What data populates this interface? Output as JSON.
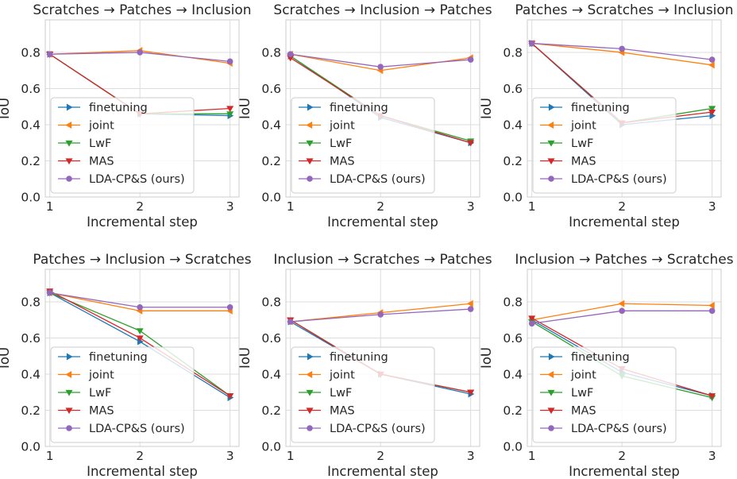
{
  "chart_data": [
    {
      "type": "line",
      "title": "Scratches → Patches → Inclusion",
      "xlabel": "Incremental step",
      "ylabel": "IoU",
      "x": [
        1,
        2,
        3
      ],
      "ylim": [
        0,
        0.98
      ],
      "yticks": [
        0.0,
        0.2,
        0.4,
        0.6,
        0.8
      ],
      "ytick_labels": [
        "0.0",
        "0.2",
        "0.4",
        "0.6",
        "0.8"
      ],
      "xtick_labels": [
        "1",
        "2",
        "3"
      ],
      "grid": true,
      "legend": "bottom-left",
      "series": [
        {
          "name": "finetuning",
          "values": [
            0.79,
            0.46,
            0.45
          ]
        },
        {
          "name": "joint",
          "values": [
            0.79,
            0.81,
            0.74
          ]
        },
        {
          "name": "LwF",
          "values": [
            0.79,
            0.46,
            0.46
          ]
        },
        {
          "name": "MAS",
          "values": [
            0.79,
            0.46,
            0.49
          ]
        },
        {
          "name": "LDA-CP&S (ours)",
          "values": [
            0.79,
            0.8,
            0.75
          ]
        }
      ]
    },
    {
      "type": "line",
      "title": "Scratches → Inclusion → Patches",
      "xlabel": "Incremental step",
      "ylabel": "IoU",
      "x": [
        1,
        2,
        3
      ],
      "ylim": [
        0,
        0.98
      ],
      "yticks": [
        0.0,
        0.2,
        0.4,
        0.6,
        0.8
      ],
      "ytick_labels": [
        "0.0",
        "0.2",
        "0.4",
        "0.6",
        "0.8"
      ],
      "xtick_labels": [
        "1",
        "2",
        "3"
      ],
      "grid": true,
      "legend": "bottom-left",
      "series": [
        {
          "name": "finetuning",
          "values": [
            0.78,
            0.44,
            0.3
          ]
        },
        {
          "name": "joint",
          "values": [
            0.79,
            0.7,
            0.77
          ]
        },
        {
          "name": "LwF",
          "values": [
            0.78,
            0.45,
            0.31
          ]
        },
        {
          "name": "MAS",
          "values": [
            0.77,
            0.45,
            0.3
          ]
        },
        {
          "name": "LDA-CP&S (ours)",
          "values": [
            0.79,
            0.72,
            0.76
          ]
        }
      ]
    },
    {
      "type": "line",
      "title": "Patches → Scratches → Inclusion",
      "xlabel": "Incremental step",
      "ylabel": "IoU",
      "x": [
        1,
        2,
        3
      ],
      "ylim": [
        0,
        0.98
      ],
      "yticks": [
        0.0,
        0.2,
        0.4,
        0.6,
        0.8
      ],
      "ytick_labels": [
        "0.0",
        "0.2",
        "0.4",
        "0.6",
        "0.8"
      ],
      "xtick_labels": [
        "1",
        "2",
        "3"
      ],
      "grid": true,
      "legend": "bottom-left",
      "series": [
        {
          "name": "finetuning",
          "values": [
            0.85,
            0.4,
            0.45
          ]
        },
        {
          "name": "joint",
          "values": [
            0.85,
            0.8,
            0.73
          ]
        },
        {
          "name": "LwF",
          "values": [
            0.85,
            0.41,
            0.49
          ]
        },
        {
          "name": "MAS",
          "values": [
            0.85,
            0.41,
            0.47
          ]
        },
        {
          "name": "LDA-CP&S (ours)",
          "values": [
            0.85,
            0.82,
            0.76
          ]
        }
      ]
    },
    {
      "type": "line",
      "title": "Patches → Inclusion → Scratches",
      "xlabel": "Incremental step",
      "ylabel": "IoU",
      "x": [
        1,
        2,
        3
      ],
      "ylim": [
        0,
        0.98
      ],
      "yticks": [
        0.0,
        0.2,
        0.4,
        0.6,
        0.8
      ],
      "ytick_labels": [
        "0.0",
        "0.2",
        "0.4",
        "0.6",
        "0.8"
      ],
      "xtick_labels": [
        "1",
        "2",
        "3"
      ],
      "grid": true,
      "legend": "bottom-left",
      "series": [
        {
          "name": "finetuning",
          "values": [
            0.85,
            0.58,
            0.27
          ]
        },
        {
          "name": "joint",
          "values": [
            0.85,
            0.75,
            0.75
          ]
        },
        {
          "name": "LwF",
          "values": [
            0.85,
            0.64,
            0.28
          ]
        },
        {
          "name": "MAS",
          "values": [
            0.86,
            0.6,
            0.28
          ]
        },
        {
          "name": "LDA-CP&S (ours)",
          "values": [
            0.85,
            0.77,
            0.77
          ]
        }
      ]
    },
    {
      "type": "line",
      "title": "Inclusion → Scratches → Patches",
      "xlabel": "Incremental step",
      "ylabel": "IoU",
      "x": [
        1,
        2,
        3
      ],
      "ylim": [
        0,
        0.98
      ],
      "yticks": [
        0.0,
        0.2,
        0.4,
        0.6,
        0.8
      ],
      "ytick_labels": [
        "0.0",
        "0.2",
        "0.4",
        "0.6",
        "0.8"
      ],
      "xtick_labels": [
        "1",
        "2",
        "3"
      ],
      "grid": true,
      "legend": "bottom-left",
      "series": [
        {
          "name": "finetuning",
          "values": [
            0.69,
            0.4,
            0.29
          ]
        },
        {
          "name": "joint",
          "values": [
            0.69,
            0.74,
            0.79
          ]
        },
        {
          "name": "LwF",
          "values": [
            0.7,
            0.4,
            0.3
          ]
        },
        {
          "name": "MAS",
          "values": [
            0.7,
            0.4,
            0.3
          ]
        },
        {
          "name": "LDA-CP&S (ours)",
          "values": [
            0.69,
            0.73,
            0.76
          ]
        }
      ]
    },
    {
      "type": "line",
      "title": "Inclusion → Patches → Scratches",
      "xlabel": "Incremental step",
      "ylabel": "IoU",
      "x": [
        1,
        2,
        3
      ],
      "ylim": [
        0,
        0.98
      ],
      "yticks": [
        0.0,
        0.2,
        0.4,
        0.6,
        0.8
      ],
      "ytick_labels": [
        "0.0",
        "0.2",
        "0.4",
        "0.6",
        "0.8"
      ],
      "xtick_labels": [
        "1",
        "2",
        "3"
      ],
      "grid": true,
      "legend": "bottom-left",
      "series": [
        {
          "name": "finetuning",
          "values": [
            0.7,
            0.41,
            0.28
          ]
        },
        {
          "name": "joint",
          "values": [
            0.7,
            0.79,
            0.78
          ]
        },
        {
          "name": "LwF",
          "values": [
            0.69,
            0.39,
            0.27
          ]
        },
        {
          "name": "MAS",
          "values": [
            0.71,
            0.43,
            0.28
          ]
        },
        {
          "name": "LDA-CP&S (ours)",
          "values": [
            0.68,
            0.75,
            0.75
          ]
        }
      ]
    }
  ],
  "colors": {
    "finetuning": "#1f77b4",
    "joint": "#ff7f0e",
    "LwF": "#2ca02c",
    "MAS": "#d62728",
    "LDA-CP&S (ours)": "#9467bd",
    "grid": "#dddddd",
    "text": "#262626"
  },
  "markers": {
    "finetuning": "triangle-right",
    "joint": "triangle-left",
    "LwF": "triangle-down",
    "MAS": "triangle-down",
    "LDA-CP&S (ours)": "circle"
  }
}
